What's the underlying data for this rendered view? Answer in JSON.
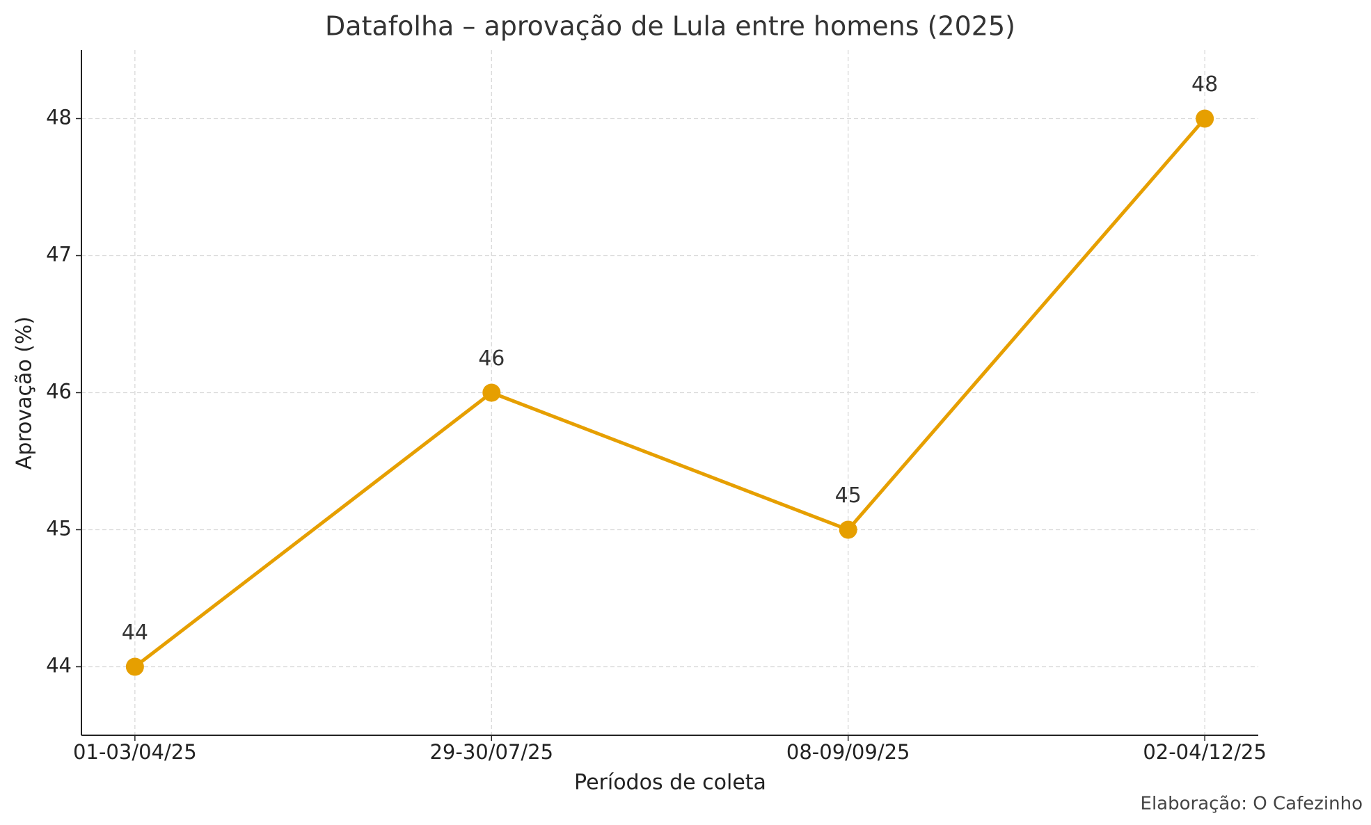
{
  "chart_data": {
    "type": "line",
    "title": "Datafolha – aprovação de Lula entre homens (2025)",
    "x_label": "Períodos de coleta",
    "y_label": "Aprovação (%)",
    "source": "Elaboração: O Cafezinho",
    "categories": [
      "01-03/04/25",
      "29-30/07/25",
      "08-09/09/25",
      "02-04/12/25"
    ],
    "series": [
      {
        "name": "Aprovação",
        "color": "#e69f00",
        "values": [
          44,
          46,
          45,
          48
        ]
      }
    ],
    "ylim": [
      43.5,
      48.5
    ],
    "yticks": [
      44,
      45,
      46,
      47,
      48
    ],
    "grid": true
  }
}
